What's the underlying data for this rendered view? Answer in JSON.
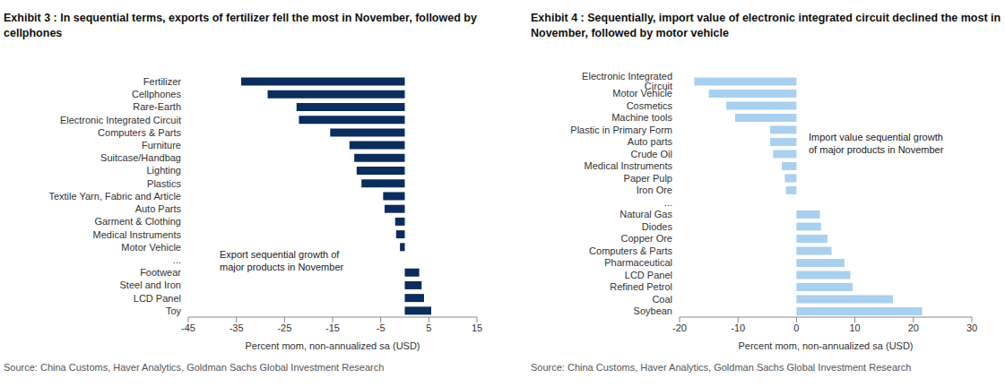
{
  "chart_data": [
    {
      "type": "bar",
      "orientation": "horizontal",
      "title": "Exhibit 3 : In sequential terms, exports of fertilizer fell the most in November, followed by cellphones",
      "x_label": "Percent mom, non-annualized sa (USD)",
      "annotation": [
        "Export sequential growth of",
        "major products in November"
      ],
      "source": "Source: China Customs, Haver Analytics, Goldman Sachs Global Investment Research",
      "categories": [
        "Fertilizer",
        "Cellphones",
        "Rare-Earth",
        "Electronic Integrated Circuit",
        "Computers & Parts",
        "Furniture",
        "Suitcase/Handbag",
        "Lighting",
        "Plastics",
        "Textile Yarn, Fabric and Article",
        "Auto Parts",
        "Garment & Clothing",
        "Medical Instruments",
        "Motor Vehicle",
        "...",
        "Footwear",
        "Steel and Iron",
        "LCD Panel",
        "Toy"
      ],
      "values": [
        -34,
        -28.5,
        -22.5,
        -22,
        -15.5,
        -11.5,
        -10.5,
        -10,
        -9,
        -4.5,
        -4.2,
        -2,
        -1.8,
        -1,
        null,
        3,
        3.5,
        4,
        5.5
      ],
      "color": "#0b2d5b",
      "xlim": [
        -45,
        15
      ],
      "xticks": [
        -45,
        -35,
        -25,
        -15,
        -5,
        5,
        15
      ]
    },
    {
      "type": "bar",
      "orientation": "horizontal",
      "title": "Exhibit 4 : Sequentially, import value of electronic integrated circuit declined the most in November, followed by motor vehicle",
      "x_label": "Percent mom, non-annualized sa (USD)",
      "annotation": [
        "Import value sequential growth",
        "of major products in November"
      ],
      "source": "Source: China Customs, Haver Analytics, Goldman Sachs Global Investment Research",
      "categories": [
        "Electronic Integrated Circuit",
        "Motor Vehicle",
        "Cosmetics",
        "Machine tools",
        "Plastic in Primary Form",
        "Auto parts",
        "Crude Oil",
        "Medical Instruments",
        "Paper Pulp",
        "Iron Ore",
        "...",
        "Natural Gas",
        "Diodes",
        "Copper Ore",
        "Computers & Parts",
        "Pharmaceutical",
        "LCD Panel",
        "Refined Petrol",
        "Coal",
        "Soybean"
      ],
      "values": [
        -17.5,
        -15,
        -12,
        -10.5,
        -4.5,
        -4.5,
        -4,
        -2.5,
        -2,
        -1.8,
        null,
        4,
        4.2,
        5.3,
        6,
        8.2,
        9.2,
        9.6,
        16.5,
        21.5
      ],
      "color": "#a9d0ee",
      "xlim": [
        -20,
        30
      ],
      "xticks": [
        -20,
        -10,
        0,
        10,
        20,
        30
      ]
    }
  ]
}
